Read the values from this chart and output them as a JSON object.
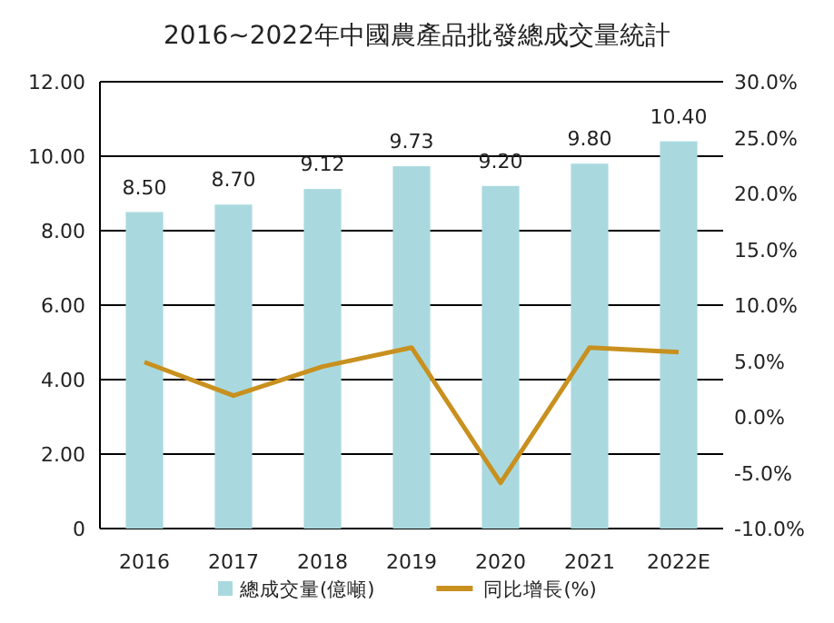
{
  "chart_data": {
    "type": "bar",
    "title": "2016~2022年中國農產品批發總成交量統計",
    "categories": [
      "2016",
      "2017",
      "2018",
      "2019",
      "2020",
      "2021",
      "2022E"
    ],
    "series": [
      {
        "name": "總成交量(億噸)",
        "color": "#a9d9df",
        "values": [
          8.5,
          8.7,
          9.12,
          9.73,
          9.2,
          9.8,
          10.4
        ],
        "value_labels": [
          "8.50",
          "8.70",
          "9.12",
          "9.73",
          "9.20",
          "9.80",
          "10.40"
        ]
      },
      {
        "name": "同比增長(%)",
        "type": "line",
        "axis": "y2",
        "color": "#c8901e",
        "values": [
          4.9,
          1.9,
          4.5,
          6.2,
          -5.9,
          6.2,
          5.8
        ]
      }
    ],
    "ylim": [
      0,
      12
    ],
    "yticks": [
      0,
      {
        "value": 2,
        "label": "2.00"
      },
      {
        "value": 4,
        "label": "4.00"
      },
      {
        "value": 6,
        "label": "6.00"
      },
      {
        "value": 8,
        "label": "8.00"
      },
      {
        "value": 10,
        "label": "10.00"
      },
      {
        "value": 12,
        "label": "12.00"
      }
    ],
    "y2lim": [
      -10,
      30
    ],
    "y2ticks": [
      {
        "value": -10,
        "label": "-10.0%"
      },
      {
        "value": -5,
        "label": "-5.0%"
      },
      {
        "value": 0,
        "label": "0.0%"
      },
      {
        "value": 5,
        "label": "5.0%"
      },
      {
        "value": 10,
        "label": "10.0%"
      },
      {
        "value": 15,
        "label": "15.0%"
      },
      {
        "value": 20,
        "label": "20.0%"
      },
      {
        "value": 25,
        "label": "25.0%"
      },
      {
        "value": 30,
        "label": "30.0%"
      }
    ],
    "grid": "y",
    "legend": "bottom",
    "marker": "none",
    "line_style": "solid"
  }
}
